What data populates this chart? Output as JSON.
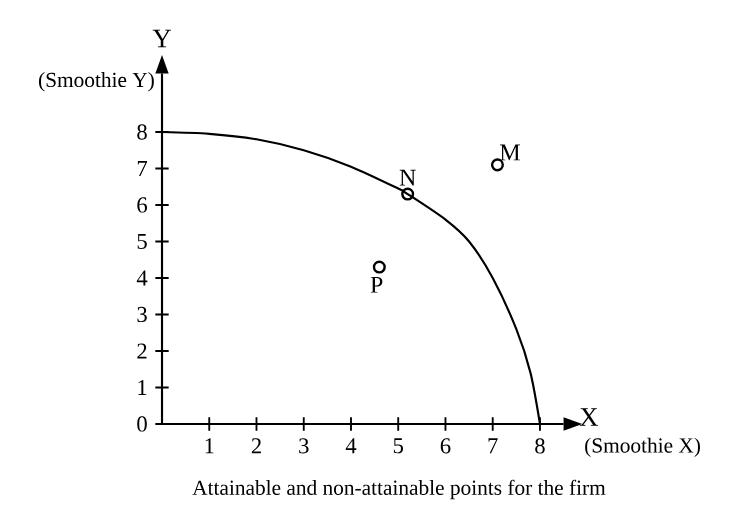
{
  "chart_data": {
    "type": "scatter",
    "xlabel": "X",
    "ylabel": "Y",
    "annotations": [
      "(Smoothie X)",
      "(Smoothie Y)",
      "Attainable and non-attainable points for the firm",
      {
        "text": "N",
        "x": 5.2,
        "y": 6.3
      },
      {
        "text": "M",
        "x": 7.1,
        "y": 7.1
      },
      {
        "text": "P",
        "x": 4.6,
        "y": 4.3
      }
    ],
    "series": [
      {
        "type": "line",
        "color": "#000000",
        "marker": "none",
        "x": [
          0,
          1,
          2,
          3,
          4,
          5,
          5.2,
          6,
          6.5,
          7,
          7.5,
          7.8,
          8
        ],
        "values": [
          8,
          7.95,
          7.8,
          7.5,
          7.05,
          6.45,
          6.3,
          5.6,
          5.0,
          4.0,
          2.6,
          1.4,
          0
        ]
      },
      {
        "color": "#000000",
        "marker": "circle",
        "x": [
          5.2,
          7.1,
          4.6
        ],
        "values": [
          6.3,
          7.1,
          4.3
        ]
      }
    ],
    "xlim": [
      0,
      8.5
    ],
    "ylim": [
      0,
      9.6
    ],
    "xticks": [
      1,
      2,
      3,
      4,
      5,
      6,
      7,
      8
    ],
    "yticks": [
      0,
      1,
      2,
      3,
      4,
      5,
      6,
      7,
      8
    ],
    "grid": false
  }
}
